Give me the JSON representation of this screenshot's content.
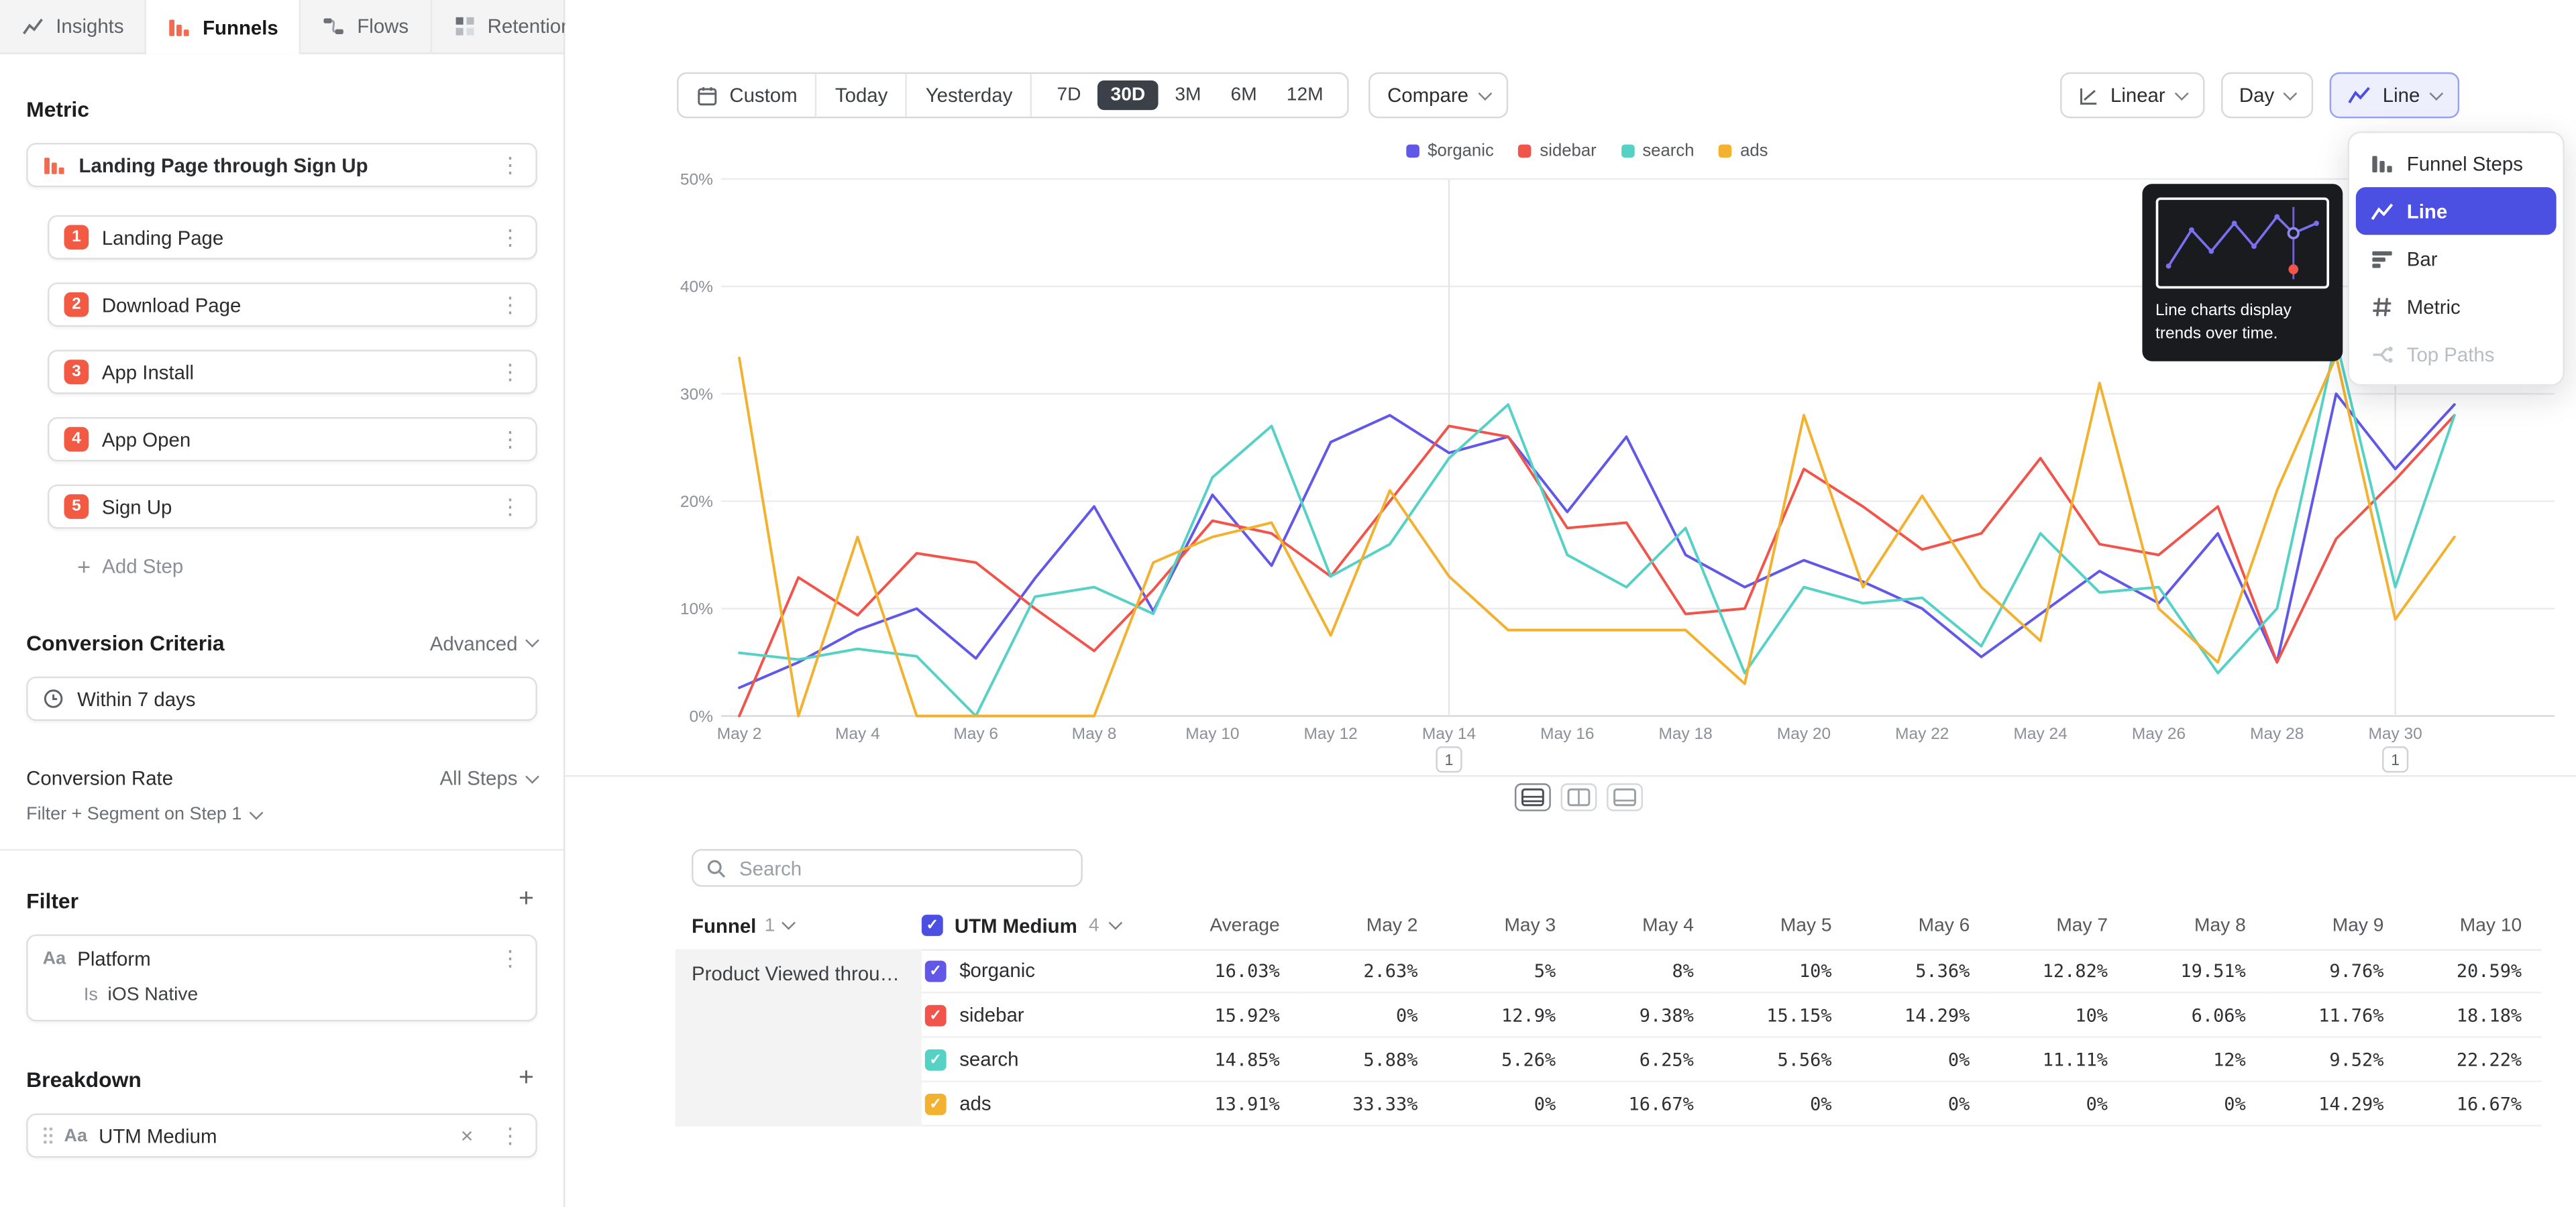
{
  "app": {
    "tabs": [
      {
        "label": "Insights",
        "icon": "insights-icon",
        "active": false
      },
      {
        "label": "Funnels",
        "icon": "funnels-icon",
        "active": true
      },
      {
        "label": "Flows",
        "icon": "flows-icon",
        "active": false
      },
      {
        "label": "Retention",
        "icon": "retention-icon",
        "active": false
      }
    ]
  },
  "sidebar": {
    "metric_heading": "Metric",
    "funnel_title": "Landing Page through Sign Up",
    "step_badge_color": "#f25a44",
    "steps": [
      {
        "num": "1",
        "label": "Landing Page"
      },
      {
        "num": "2",
        "label": "Download Page"
      },
      {
        "num": "3",
        "label": "App Install"
      },
      {
        "num": "4",
        "label": "App Open"
      },
      {
        "num": "5",
        "label": "Sign Up"
      }
    ],
    "add_step_label": "Add Step",
    "conversion_heading": "Conversion Criteria",
    "advanced_label": "Advanced",
    "window_label": "Within 7 days",
    "conversion_rate_label": "Conversion Rate",
    "all_steps_label": "All Steps",
    "filter_segment_label": "Filter + Segment on Step 1",
    "filter_heading": "Filter",
    "filter_field_prefix": "Aa",
    "filter_field": "Platform",
    "filter_operator": "Is",
    "filter_value": "iOS Native",
    "breakdown_heading": "Breakdown",
    "breakdown_field_prefix": "Aa",
    "breakdown_field": "UTM Medium"
  },
  "toolbar": {
    "custom_label": "Custom",
    "today_label": "Today",
    "yesterday_label": "Yesterday",
    "ranges": [
      "7D",
      "30D",
      "3M",
      "6M",
      "12M"
    ],
    "active_range": "30D",
    "compare_label": "Compare",
    "linear_label": "Linear",
    "day_label": "Day",
    "line_label": "Line"
  },
  "chart_menu": {
    "selected_bg": "#4b4fe2",
    "items": [
      {
        "label": "Funnel Steps",
        "icon": "funnel-steps-icon",
        "selected": false,
        "disabled": false
      },
      {
        "label": "Line",
        "icon": "line-chart-icon",
        "selected": true,
        "disabled": false
      },
      {
        "label": "Bar",
        "icon": "bar-chart-icon",
        "selected": false,
        "disabled": false
      },
      {
        "label": "Metric",
        "icon": "metric-hash-icon",
        "selected": false,
        "disabled": false
      },
      {
        "label": "Top Paths",
        "icon": "top-paths-icon",
        "selected": false,
        "disabled": true
      }
    ],
    "tooltip_text": "Line charts display trends over time."
  },
  "chart_data": {
    "type": "line",
    "x": [
      "May 2",
      "May 3",
      "May 4",
      "May 5",
      "May 6",
      "May 7",
      "May 8",
      "May 9",
      "May 10",
      "May 11",
      "May 12",
      "May 13",
      "May 14",
      "May 15",
      "May 16",
      "May 17",
      "May 18",
      "May 19",
      "May 20",
      "May 21",
      "May 22",
      "May 23",
      "May 24",
      "May 25",
      "May 26",
      "May 27",
      "May 28",
      "May 29",
      "May 30",
      "May 31"
    ],
    "xticklabels": [
      "May 2",
      "May 4",
      "May 6",
      "May 8",
      "May 10",
      "May 12",
      "May 14",
      "May 16",
      "May 18",
      "May 20",
      "May 22",
      "May 24",
      "May 26",
      "May 28",
      "May 30"
    ],
    "yticks": [
      "0%",
      "10%",
      "20%",
      "30%",
      "40%",
      "50%"
    ],
    "ylim": [
      0,
      50
    ],
    "grid": true,
    "legend_position": "top",
    "series": [
      {
        "name": "$organic",
        "color": "#6157e8",
        "values": [
          2.63,
          5,
          8,
          10,
          5.36,
          12.82,
          19.51,
          9.76,
          20.59,
          14,
          25.5,
          28,
          24.5,
          26,
          19,
          26,
          15,
          12,
          14.5,
          12.5,
          10,
          5.5,
          9.5,
          13.5,
          10.5,
          17,
          5,
          30,
          23,
          29
        ]
      },
      {
        "name": "sidebar",
        "color": "#f1544b",
        "values": [
          0,
          12.9,
          9.38,
          15.15,
          14.29,
          10,
          6.06,
          11.76,
          18.18,
          17,
          13,
          20,
          27,
          26,
          17.5,
          18,
          9.5,
          10,
          23,
          19.5,
          15.5,
          17,
          24,
          16,
          15,
          19.5,
          5,
          16.5,
          22,
          28
        ]
      },
      {
        "name": "search",
        "color": "#55d1c6",
        "values": [
          5.88,
          5.26,
          6.25,
          5.56,
          0,
          11.11,
          12,
          9.52,
          22.22,
          27,
          13,
          16,
          24,
          29,
          15,
          12,
          17.5,
          4,
          12,
          10.5,
          11,
          6.5,
          17,
          11.5,
          12,
          4,
          10,
          35,
          12,
          28
        ]
      },
      {
        "name": "ads",
        "color": "#f2b12e",
        "values": [
          33.33,
          0,
          16.67,
          0,
          0,
          0,
          0,
          14.29,
          16.67,
          18,
          7.5,
          21,
          13,
          8,
          8,
          8,
          8,
          3,
          28,
          12,
          20.5,
          12,
          7,
          31,
          10,
          5,
          21,
          33.5,
          9,
          16.67
        ]
      }
    ],
    "annotations": [
      {
        "x": "May 14",
        "label": "1"
      },
      {
        "x": "May 30",
        "label": "1"
      }
    ]
  },
  "table": {
    "search_placeholder": "Search",
    "funnel_col": {
      "label": "Funnel",
      "count": "1"
    },
    "breakdown_col": {
      "label": "UTM Medium",
      "count": "4"
    },
    "average_header": "Average",
    "day_headers": [
      "May 2",
      "May 3",
      "May 4",
      "May 5",
      "May 6",
      "May 7",
      "May 8",
      "May 9",
      "May 10"
    ],
    "row_group": "Product Viewed through P...",
    "rows": [
      {
        "label": "$organic",
        "color": "#6157e8",
        "average": "16.03%",
        "values": [
          "2.63%",
          "5%",
          "8%",
          "10%",
          "5.36%",
          "12.82%",
          "19.51%",
          "9.76%",
          "20.59%"
        ]
      },
      {
        "label": "sidebar",
        "color": "#f1544b",
        "average": "15.92%",
        "values": [
          "0%",
          "12.9%",
          "9.38%",
          "15.15%",
          "14.29%",
          "10%",
          "6.06%",
          "11.76%",
          "18.18%"
        ]
      },
      {
        "label": "search",
        "color": "#55d1c6",
        "average": "14.85%",
        "values": [
          "5.88%",
          "5.26%",
          "6.25%",
          "5.56%",
          "0%",
          "11.11%",
          "12%",
          "9.52%",
          "22.22%"
        ]
      },
      {
        "label": "ads",
        "color": "#f2b12e",
        "average": "13.91%",
        "values": [
          "33.33%",
          "0%",
          "16.67%",
          "0%",
          "0%",
          "0%",
          "0%",
          "14.29%",
          "16.67%"
        ]
      }
    ]
  }
}
